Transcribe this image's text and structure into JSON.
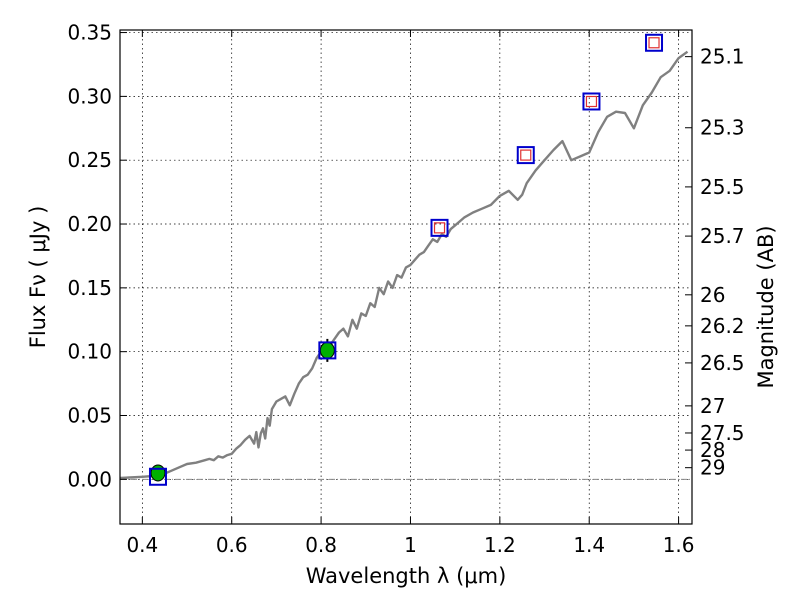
{
  "chart_data": {
    "type": "scatter",
    "xlabel": "Wavelength  λ (μm)",
    "ylabel": "Flux  Fν  ( μJy )",
    "y2label": "Magnitude (AB)",
    "xlim": [
      0.35,
      1.63
    ],
    "ylim": [
      -0.035,
      0.352
    ],
    "grid": true,
    "x_ticks": [
      0.4,
      0.6,
      0.8,
      1.0,
      1.2,
      1.4,
      1.6
    ],
    "x_tick_labels": [
      "0.4",
      "0.6",
      "0.8",
      "1",
      "1.2",
      "1.4",
      "1.6"
    ],
    "y_ticks": [
      0.0,
      0.05,
      0.1,
      0.15,
      0.2,
      0.25,
      0.3,
      0.35
    ],
    "y_tick_labels": [
      "0.00",
      "0.05",
      "0.10",
      "0.15",
      "0.20",
      "0.25",
      "0.30",
      "0.35"
    ],
    "y2_ticks": [
      25.1,
      25.3,
      25.5,
      25.7,
      26,
      26.2,
      26.5,
      27,
      27.5,
      28,
      29
    ],
    "y2_tick_labels": [
      "25.1",
      "25.3",
      "25.5",
      "25.7",
      "26",
      "26.2",
      "26.5",
      "27",
      "27.5",
      "28",
      "29"
    ],
    "spectrum": {
      "color": "#808080",
      "x": [
        0.35,
        0.4,
        0.44,
        0.46,
        0.48,
        0.5,
        0.52,
        0.54,
        0.55,
        0.56,
        0.57,
        0.58,
        0.59,
        0.6,
        0.61,
        0.62,
        0.63,
        0.64,
        0.65,
        0.655,
        0.66,
        0.665,
        0.67,
        0.675,
        0.68,
        0.685,
        0.69,
        0.7,
        0.71,
        0.72,
        0.73,
        0.74,
        0.75,
        0.76,
        0.77,
        0.78,
        0.79,
        0.8,
        0.81,
        0.82,
        0.83,
        0.84,
        0.85,
        0.86,
        0.87,
        0.88,
        0.89,
        0.9,
        0.91,
        0.92,
        0.93,
        0.94,
        0.95,
        0.96,
        0.97,
        0.98,
        0.99,
        1.0,
        1.01,
        1.02,
        1.03,
        1.04,
        1.05,
        1.06,
        1.07,
        1.08,
        1.09,
        1.1,
        1.12,
        1.14,
        1.16,
        1.18,
        1.2,
        1.22,
        1.24,
        1.25,
        1.26,
        1.28,
        1.3,
        1.32,
        1.34,
        1.36,
        1.38,
        1.4,
        1.42,
        1.44,
        1.46,
        1.48,
        1.5,
        1.52,
        1.54,
        1.56,
        1.58,
        1.6,
        1.62
      ],
      "y": [
        0.001,
        0.002,
        0.003,
        0.006,
        0.009,
        0.012,
        0.013,
        0.015,
        0.016,
        0.015,
        0.018,
        0.017,
        0.019,
        0.02,
        0.024,
        0.027,
        0.031,
        0.034,
        0.028,
        0.037,
        0.025,
        0.036,
        0.04,
        0.032,
        0.048,
        0.042,
        0.055,
        0.061,
        0.063,
        0.065,
        0.058,
        0.067,
        0.075,
        0.08,
        0.082,
        0.087,
        0.095,
        0.1,
        0.103,
        0.105,
        0.11,
        0.115,
        0.118,
        0.112,
        0.125,
        0.118,
        0.13,
        0.128,
        0.138,
        0.135,
        0.15,
        0.145,
        0.155,
        0.15,
        0.16,
        0.158,
        0.166,
        0.168,
        0.172,
        0.176,
        0.178,
        0.183,
        0.188,
        0.186,
        0.192,
        0.19,
        0.196,
        0.199,
        0.205,
        0.209,
        0.212,
        0.215,
        0.222,
        0.226,
        0.219,
        0.223,
        0.232,
        0.242,
        0.25,
        0.258,
        0.265,
        0.25,
        0.253,
        0.256,
        0.272,
        0.284,
        0.288,
        0.287,
        0.275,
        0.293,
        0.303,
        0.315,
        0.32,
        0.33,
        0.335
      ]
    },
    "detections": {
      "marker": "circle",
      "color": "#00b000",
      "points": [
        {
          "x": 0.435,
          "y": 0.005,
          "yerr": 0.006
        },
        {
          "x": 0.814,
          "y": 0.101,
          "yerr": 0.009
        }
      ]
    },
    "model_boxes": {
      "marker": "square",
      "color": "#0000cc",
      "points": [
        {
          "x": 0.435,
          "y": 0.002
        },
        {
          "x": 0.814,
          "y": 0.101
        },
        {
          "x": 1.065,
          "y": 0.197
        },
        {
          "x": 1.258,
          "y": 0.254
        },
        {
          "x": 1.405,
          "y": 0.296
        },
        {
          "x": 1.545,
          "y": 0.342
        }
      ]
    },
    "upper_limits": {
      "marker": "square",
      "color": "#e03030",
      "points": [
        {
          "x": 1.065,
          "y": 0.197
        },
        {
          "x": 1.258,
          "y": 0.254
        },
        {
          "x": 1.405,
          "y": 0.296
        },
        {
          "x": 1.545,
          "y": 0.342
        }
      ]
    }
  }
}
